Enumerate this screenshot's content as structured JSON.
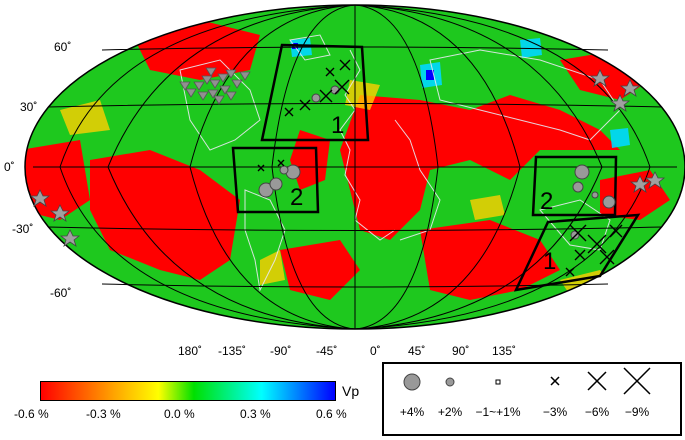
{
  "map": {
    "lat_labels": [
      "60˚",
      "30˚",
      "0˚",
      "-30˚",
      "-60˚"
    ],
    "lon_labels": [
      "180˚",
      "-135˚",
      "-90˚",
      "-45˚",
      "0˚",
      "45˚",
      "90˚",
      "135˚"
    ],
    "region_labels": [
      "1",
      "2",
      "1",
      "2"
    ]
  },
  "colorbar": {
    "title": "Vp",
    "ticks": [
      "-0.6 %",
      "-0.3 %",
      "0.0 %",
      "0.3 %",
      "0.6 %"
    ],
    "colors": [
      "#ff0000",
      "#ffff00",
      "#00ff00",
      "#00ffff",
      "#0000ff"
    ]
  },
  "symbol_legend": {
    "labels": [
      "+4%",
      "+2%",
      "−1~+1%",
      "−3%",
      "−6%",
      "−9%"
    ]
  }
}
